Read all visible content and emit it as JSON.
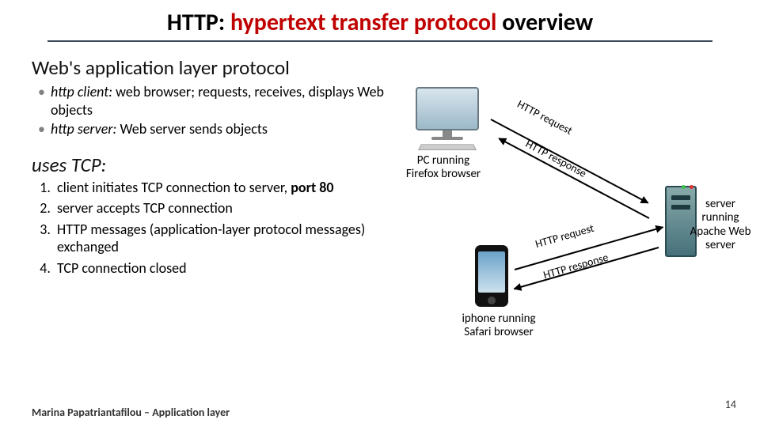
{
  "title": {
    "pre": "HTTP",
    "mid": ": ",
    "red": "hypertext transfer protocol",
    "post": " overview"
  },
  "left": {
    "heading": "Web's application layer protocol",
    "bullets": [
      {
        "term": "http client:",
        "rest": " web browser; requests, receives, displays Web objects"
      },
      {
        "term": "http server:",
        "rest": " Web server sends objects"
      }
    ],
    "uses_tcp": "uses TCP:",
    "steps": [
      "client initiates TCP connection to server, port 80",
      "server accepts TCP connection",
      "HTTP messages (application-layer protocol messages) exchanged",
      "TCP connection closed"
    ],
    "step_bold": "port 80"
  },
  "diagram": {
    "pc_label": "PC running\nFirefox browser",
    "phone_label": "iphone running\nSafari browser",
    "server_label": "server\nrunning\nApache Web\nserver",
    "arrows": {
      "pc_req": "HTTP request",
      "pc_resp": "HTTP response",
      "phone_req": "HTTP request",
      "phone_resp": "HTTP response"
    },
    "colors": {
      "title_red": "#c00000",
      "title_underline": "#3a4a5a",
      "bullet_marker": "#808080"
    }
  },
  "footer": "Marina Papatriantafilou – Application layer",
  "page": "14"
}
